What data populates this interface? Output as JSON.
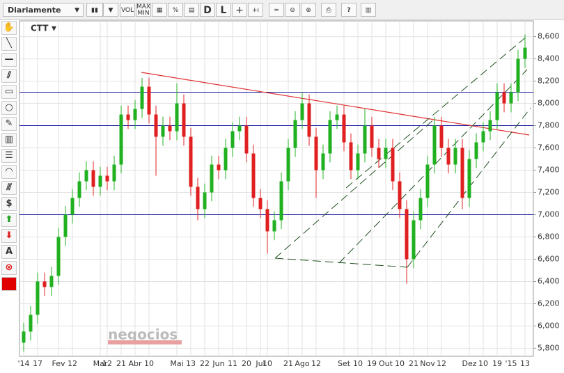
{
  "toolbar": {
    "period": "Diariamente",
    "volume": "VOL",
    "maxmin": "MAX MIN",
    "d": "D",
    "l": "L",
    "text_tool": "A"
  },
  "watermark": "negocios",
  "chart_data": {
    "type": "candlestick",
    "title": "CTT",
    "up_color": "#20b020",
    "down_color": "#e02020",
    "categories": [
      "'14",
      null,
      "17",
      null,
      null,
      "Fev",
      null,
      "12",
      null,
      null,
      null,
      "Mar",
      "12",
      null,
      "21",
      null,
      "Abr",
      null,
      "10",
      null,
      null,
      null,
      "Mai",
      null,
      "13",
      null,
      "22",
      null,
      "Jun",
      null,
      "11",
      null,
      "20",
      null,
      "Jul",
      "10",
      null,
      null,
      "21",
      null,
      "Ago",
      null,
      "12",
      null,
      null,
      null,
      "Set",
      null,
      "10",
      null,
      "19",
      null,
      "Out",
      null,
      "10",
      null,
      "21",
      null,
      "Nov",
      null,
      "12",
      null,
      null,
      null,
      "Dez",
      null,
      "10",
      null,
      "19",
      null,
      "'15",
      null,
      "13"
    ],
    "open": [
      5850,
      5950,
      6100,
      6400,
      6350,
      6450,
      6800,
      7000,
      7150,
      7300,
      7400,
      7250,
      7350,
      7300,
      7450,
      7900,
      7850,
      7950,
      8150,
      7900,
      7700,
      7800,
      7750,
      8000,
      7700,
      7250,
      7050,
      7200,
      7450,
      7400,
      7600,
      7750,
      7800,
      7550,
      7150,
      7050,
      6850,
      6950,
      7300,
      7600,
      7850,
      8000,
      7700,
      7400,
      7550,
      7850,
      7900,
      7650,
      7400,
      7550,
      7800,
      7600,
      7500,
      7600,
      7300,
      7050,
      6600,
      6950,
      7150,
      7450,
      7800,
      7600,
      7450,
      7600,
      7150,
      7500,
      7650,
      7750,
      7850,
      8100,
      8000,
      8100,
      8400
    ],
    "high": [
      6030,
      6180,
      6480,
      6480,
      6530,
      6880,
      7080,
      7230,
      7380,
      7480,
      7480,
      7430,
      7430,
      7530,
      7980,
      7980,
      8030,
      8230,
      8230,
      7980,
      7880,
      7880,
      8180,
      8080,
      7780,
      7330,
      7280,
      7530,
      7530,
      7680,
      7830,
      7880,
      7880,
      7630,
      7230,
      7130,
      7030,
      7380,
      7680,
      7930,
      8100,
      8080,
      7780,
      7630,
      7930,
      7980,
      7980,
      7730,
      7630,
      7950,
      7880,
      7680,
      7680,
      7680,
      7380,
      7130,
      7030,
      7230,
      7530,
      7880,
      7880,
      7680,
      7680,
      7680,
      7580,
      7730,
      7830,
      7930,
      8180,
      8180,
      8180,
      8480,
      8620
    ],
    "low": [
      5770,
      5870,
      6020,
      6270,
      6270,
      6370,
      6720,
      6920,
      7070,
      7220,
      7170,
      7170,
      7220,
      7220,
      7370,
      7770,
      7770,
      7870,
      7820,
      7350,
      7620,
      7670,
      7670,
      7620,
      7170,
      6950,
      6970,
      7120,
      7320,
      7320,
      7520,
      7670,
      7470,
      7070,
      6970,
      6650,
      6770,
      6870,
      7220,
      7520,
      7770,
      7620,
      7150,
      7320,
      7470,
      7770,
      7570,
      7320,
      7320,
      7470,
      7520,
      7420,
      7420,
      7220,
      6970,
      6380,
      6520,
      6870,
      7070,
      7370,
      7520,
      7370,
      7370,
      7050,
      7070,
      7420,
      7570,
      7670,
      7770,
      7920,
      7920,
      8020,
      8320
    ],
    "close": [
      5950,
      6100,
      6400,
      6350,
      6450,
      6800,
      7000,
      7150,
      7300,
      7400,
      7250,
      7350,
      7300,
      7450,
      7900,
      7850,
      7950,
      8150,
      7900,
      7700,
      7800,
      7750,
      8000,
      7700,
      7250,
      7050,
      7200,
      7450,
      7400,
      7600,
      7750,
      7800,
      7550,
      7150,
      7050,
      6850,
      6950,
      7300,
      7600,
      7850,
      8000,
      7700,
      7400,
      7550,
      7850,
      7900,
      7650,
      7400,
      7550,
      7800,
      7600,
      7500,
      7600,
      7300,
      7050,
      6600,
      6950,
      7150,
      7450,
      7800,
      7600,
      7450,
      7600,
      7150,
      7500,
      7650,
      7750,
      7850,
      8100,
      8000,
      8100,
      8400,
      8500
    ],
    "hlines": [
      8100,
      7800,
      7000
    ],
    "hline_color": "#1a1aa0",
    "ylim": [
      5740,
      8710
    ],
    "yticks": [
      {
        "value": 5800,
        "label": "5,800"
      },
      {
        "value": 6000,
        "label": "6,000"
      },
      {
        "value": 6200,
        "label": "6,200"
      },
      {
        "value": 6400,
        "label": "6,400"
      },
      {
        "value": 6600,
        "label": "6,600"
      },
      {
        "value": 6800,
        "label": "6,800"
      },
      {
        "value": 7000,
        "label": "7,000"
      },
      {
        "value": 7200,
        "label": "7,200"
      },
      {
        "value": 7400,
        "label": "7,400"
      },
      {
        "value": 7600,
        "label": "7,600"
      },
      {
        "value": 7800,
        "label": "7,800"
      },
      {
        "value": 8000,
        "label": "8,000"
      },
      {
        "value": 8200,
        "label": "8,200"
      },
      {
        "value": 8400,
        "label": "8,400"
      },
      {
        "value": 8600,
        "label": "8,600"
      }
    ],
    "grid": true
  }
}
